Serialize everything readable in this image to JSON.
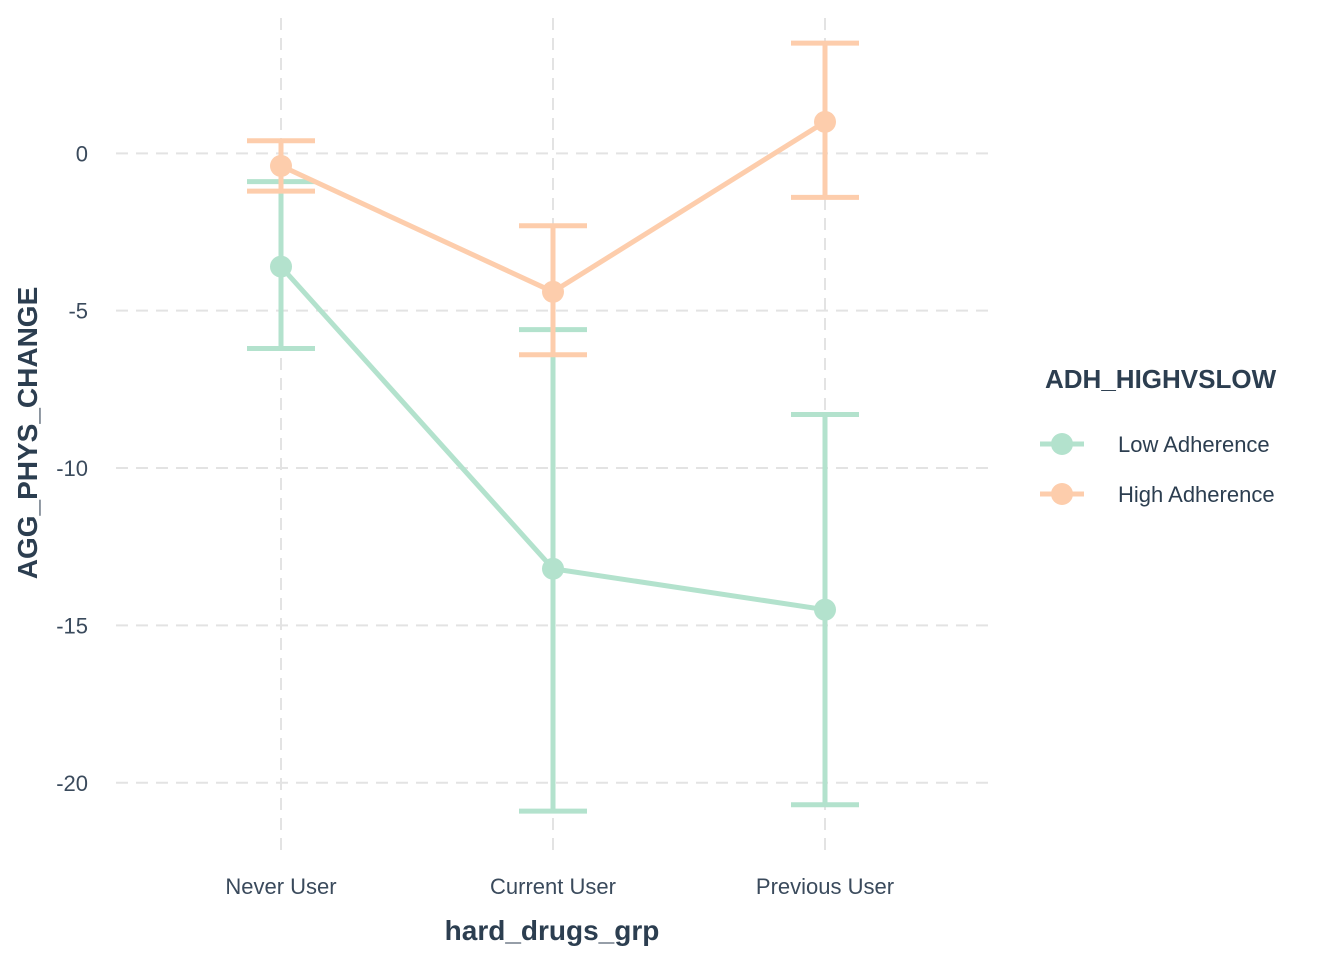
{
  "chart_data": {
    "type": "line",
    "xlabel": "hard_drugs_grp",
    "ylabel": "AGG_PHYS_CHANGE",
    "categories": [
      "Never User",
      "Current User",
      "Previous User"
    ],
    "ylim": [
      -22.2,
      4.3
    ],
    "yticks": [
      0,
      -5,
      -10,
      -15,
      -20
    ],
    "ytick_labels": [
      "0",
      "-5",
      "-10",
      "-15",
      "-20"
    ],
    "grid": true,
    "error_bars": true,
    "legend": {
      "title": "ADH_HIGHVSLOW",
      "position": "right"
    },
    "series": [
      {
        "name": "Low Adherence",
        "color": "#b3e2cd",
        "values": [
          -3.6,
          -13.2,
          -14.5
        ],
        "lower": [
          -6.2,
          -20.9,
          -20.7
        ],
        "upper": [
          -0.9,
          -5.6,
          -8.3
        ]
      },
      {
        "name": "High Adherence",
        "color": "#fdcdac",
        "values": [
          -0.4,
          -4.4,
          1.0
        ],
        "lower": [
          -1.2,
          -6.4,
          -1.4
        ],
        "upper": [
          0.4,
          -2.3,
          3.5
        ]
      }
    ]
  }
}
